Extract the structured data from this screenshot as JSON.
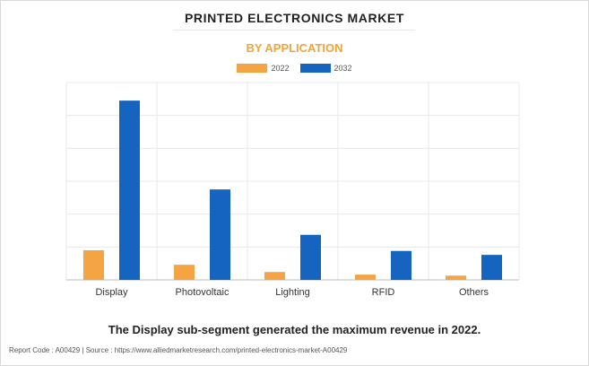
{
  "header": {
    "title": "PRINTED ELECTRONICS MARKET",
    "subtitle": "BY APPLICATION"
  },
  "caption": "The Display sub-segment generated the maximum revenue in 2022.",
  "footer": {
    "text": "Report Code : A00429  |  Source : https://www.alliedmarketresearch.com/printed-electronics-market-A00429"
  },
  "colors": {
    "s2022": "#f5a444",
    "s2032": "#1565c0",
    "subtitle": "#f2a33a"
  },
  "chart_data": {
    "type": "bar",
    "title": "PRINTED ELECTRONICS MARKET",
    "subtitle": "BY APPLICATION",
    "categories": [
      "Display",
      "Photovoltaic",
      "Lighting",
      "RFID",
      "Others"
    ],
    "series": [
      {
        "name": "2022",
        "values": [
          0.9,
          0.46,
          0.24,
          0.16,
          0.13
        ]
      },
      {
        "name": "2032",
        "values": [
          5.45,
          2.75,
          1.37,
          0.88,
          0.76
        ]
      }
    ],
    "ylim": [
      0,
      6
    ],
    "grid": true,
    "legend": "top-center",
    "xlabel": "",
    "ylabel": ""
  }
}
